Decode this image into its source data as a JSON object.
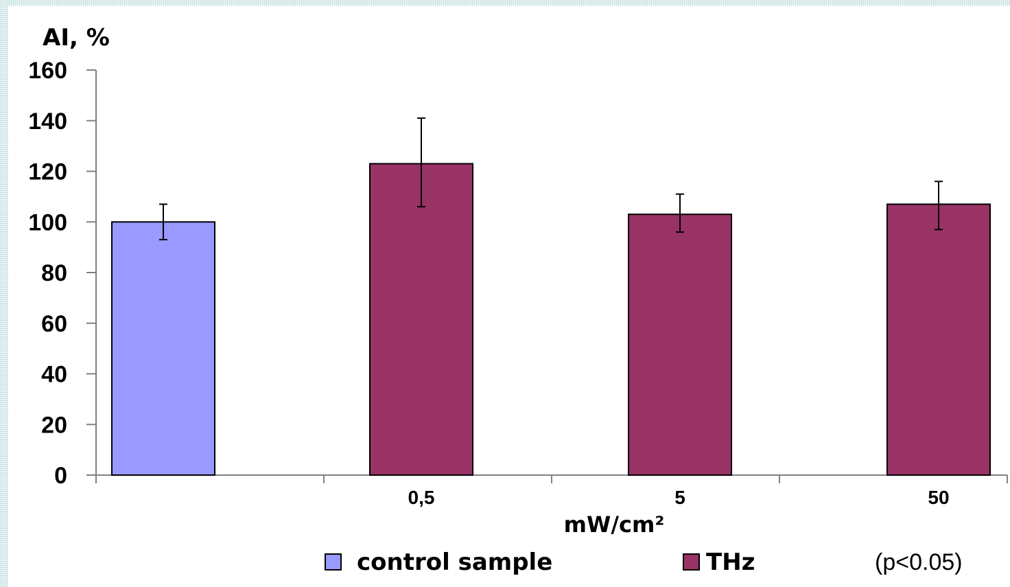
{
  "chart_data": {
    "type": "bar",
    "ylabel": "AI, %",
    "xlabel": "mW/cm²",
    "ylim": [
      0,
      160
    ],
    "yticks": [
      0,
      20,
      40,
      60,
      80,
      100,
      120,
      140,
      160
    ],
    "grid": false,
    "categories": [
      "",
      "0,5",
      "5",
      "50"
    ],
    "bars": [
      {
        "category": "",
        "series": "control sample",
        "value": 100,
        "error_low": 93,
        "error_high": 107
      },
      {
        "category": "0,5",
        "series": "THz",
        "value": 123,
        "error_low": 106,
        "error_high": 141
      },
      {
        "category": "5",
        "series": "THz",
        "value": 103,
        "error_low": 96,
        "error_high": 111
      },
      {
        "category": "50",
        "series": "THz",
        "value": 107,
        "error_low": 97,
        "error_high": 116
      }
    ],
    "legend": [
      {
        "name": "control sample",
        "color": "#9999ff"
      },
      {
        "name": "THz",
        "color": "#993366"
      }
    ],
    "annotation": "(p<0.05)"
  },
  "colors": {
    "control": "#9999ff",
    "thz": "#993366",
    "axis": "#808080",
    "text": "#000000"
  }
}
